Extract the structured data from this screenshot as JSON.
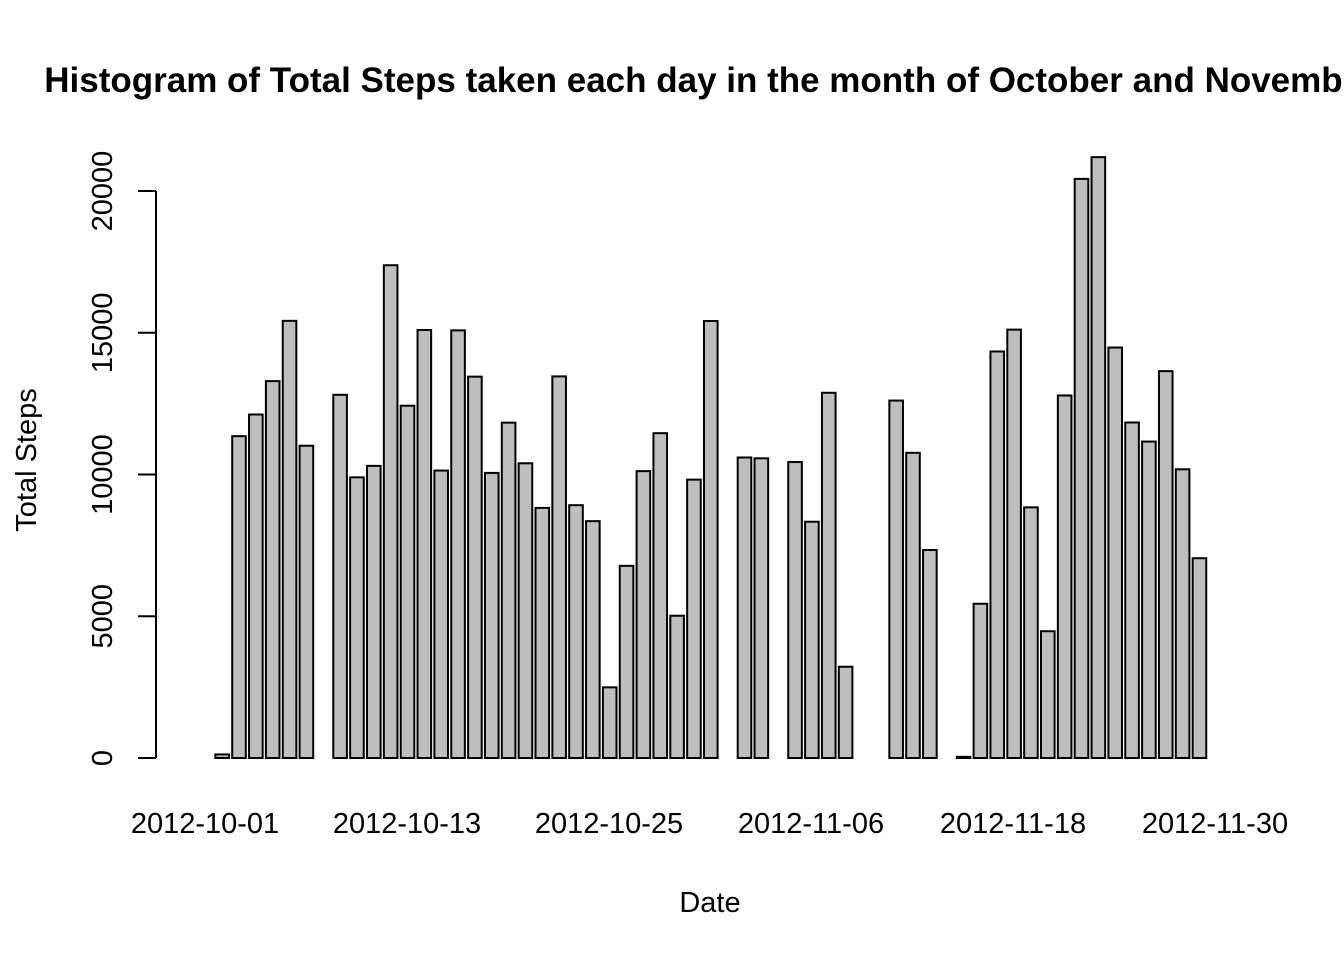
{
  "chart_data": {
    "type": "bar",
    "title": "Histogram of Total Steps taken each day in the month of October and November",
    "xlabel": "Date",
    "ylabel": "Total Steps",
    "ylim": [
      0,
      22000
    ],
    "yticks": [
      0,
      5000,
      10000,
      15000,
      20000
    ],
    "xtick_labels": [
      "2012-10-01",
      "2012-10-13",
      "2012-10-25",
      "2012-11-06",
      "2012-11-18",
      "2012-11-30"
    ],
    "bar_color": "#bebebe",
    "categories": [
      "2012-10-01",
      "2012-10-02",
      "2012-10-03",
      "2012-10-04",
      "2012-10-05",
      "2012-10-06",
      "2012-10-07",
      "2012-10-08",
      "2012-10-09",
      "2012-10-10",
      "2012-10-11",
      "2012-10-12",
      "2012-10-13",
      "2012-10-14",
      "2012-10-15",
      "2012-10-16",
      "2012-10-17",
      "2012-10-18",
      "2012-10-19",
      "2012-10-20",
      "2012-10-21",
      "2012-10-22",
      "2012-10-23",
      "2012-10-24",
      "2012-10-25",
      "2012-10-26",
      "2012-10-27",
      "2012-10-28",
      "2012-10-29",
      "2012-10-30",
      "2012-10-31",
      "2012-11-01",
      "2012-11-02",
      "2012-11-03",
      "2012-11-04",
      "2012-11-05",
      "2012-11-06",
      "2012-11-07",
      "2012-11-08",
      "2012-11-09",
      "2012-11-10",
      "2012-11-11",
      "2012-11-12",
      "2012-11-13",
      "2012-11-14",
      "2012-11-15",
      "2012-11-16",
      "2012-11-17",
      "2012-11-18",
      "2012-11-19",
      "2012-11-20",
      "2012-11-21",
      "2012-11-22",
      "2012-11-23",
      "2012-11-24",
      "2012-11-25",
      "2012-11-26",
      "2012-11-27",
      "2012-11-28",
      "2012-11-29",
      "2012-11-30"
    ],
    "values": [
      0,
      126,
      11352,
      12116,
      13294,
      15420,
      11015,
      0,
      12811,
      9900,
      10304,
      17382,
      12426,
      15098,
      10139,
      15084,
      13452,
      10056,
      11829,
      10395,
      8821,
      13460,
      8918,
      8355,
      2492,
      6778,
      10119,
      11458,
      5018,
      9819,
      15414,
      0,
      10600,
      10571,
      0,
      10439,
      8334,
      12883,
      3219,
      0,
      0,
      12608,
      10765,
      7336,
      0,
      41,
      5441,
      14339,
      15110,
      8841,
      4472,
      12787,
      20427,
      21194,
      14478,
      11834,
      11162,
      13646,
      10183,
      7047,
      0
    ]
  }
}
